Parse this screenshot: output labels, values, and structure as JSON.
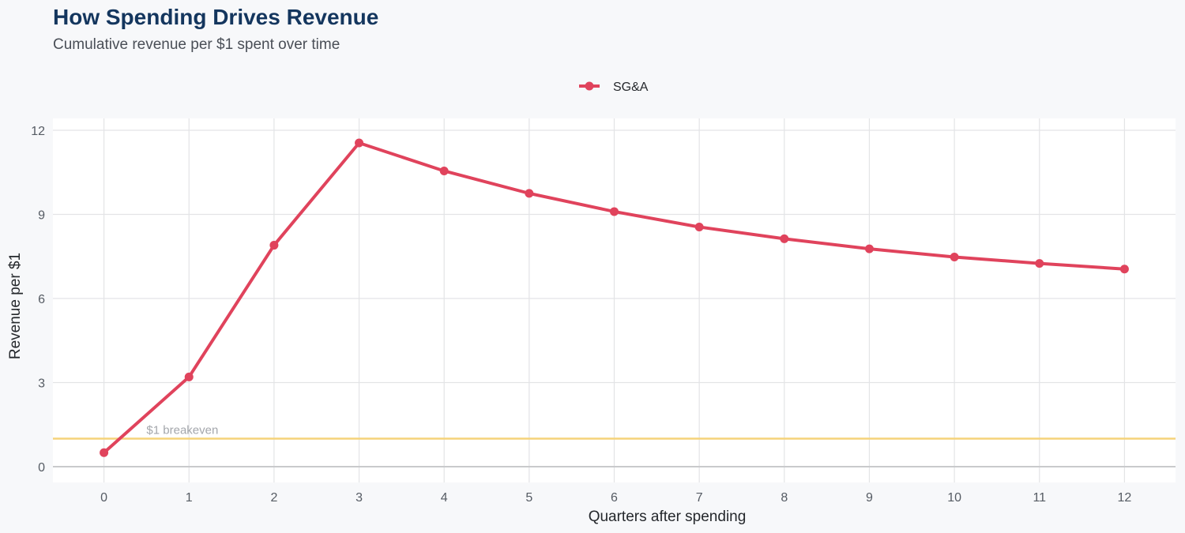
{
  "chart": {
    "title": "How Spending Drives Revenue",
    "subtitle": "Cumulative revenue per $1 spent over time"
  },
  "chart_data": {
    "type": "line",
    "title": "How Spending Drives Revenue",
    "subtitle": "Cumulative revenue per $1 spent over time",
    "xlabel": "Quarters after spending",
    "ylabel": "Revenue per $1",
    "x": [
      0,
      1,
      2,
      3,
      4,
      5,
      6,
      7,
      8,
      9,
      10,
      11,
      12
    ],
    "series": [
      {
        "name": "SG&A",
        "color": "#e0435c",
        "values": [
          0.5,
          3.2,
          7.9,
          11.55,
          10.55,
          9.75,
          9.1,
          8.55,
          8.13,
          7.77,
          7.48,
          7.25,
          7.05
        ]
      }
    ],
    "xlim": [
      -0.6,
      12.6
    ],
    "ylim": [
      -0.55,
      12
    ],
    "yticks": [
      0,
      3,
      6,
      9,
      12
    ],
    "xticks": [
      0,
      1,
      2,
      3,
      4,
      5,
      6,
      7,
      8,
      9,
      10,
      11,
      12
    ],
    "reference_line": {
      "y": 1,
      "label": "$1 breakeven",
      "color": "#f5d37a"
    },
    "grid": true,
    "legend_position": "top-center"
  }
}
